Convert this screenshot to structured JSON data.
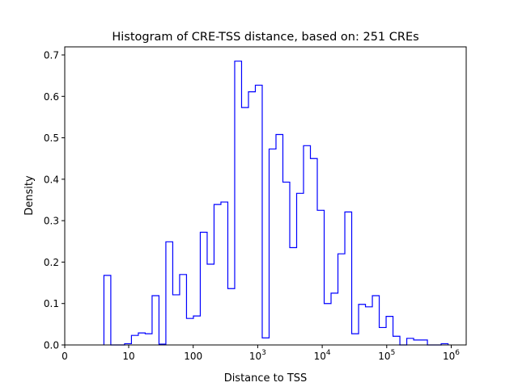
{
  "chart_data": {
    "type": "histogram-step",
    "title": "Histogram of CRE-TSS distance, based on: 251 CREs",
    "xlabel": "Distance to TSS",
    "ylabel": "Density",
    "xscale": "symlog",
    "xlim_log10": [
      -0.95,
      6.2
    ],
    "ylim": [
      0,
      0.72
    ],
    "x_ticks": [
      {
        "label": "0",
        "base": "",
        "exp": "",
        "log10": null
      },
      {
        "label": "10",
        "base": "",
        "exp": "",
        "log10": 1
      },
      {
        "label": "100",
        "base": "",
        "exp": "",
        "log10": 2
      },
      {
        "label": "",
        "base": "10",
        "exp": "3",
        "log10": 3
      },
      {
        "label": "",
        "base": "10",
        "exp": "4",
        "log10": 4
      },
      {
        "label": "",
        "base": "10",
        "exp": "5",
        "log10": 5
      },
      {
        "label": "",
        "base": "10",
        "exp": "6",
        "log10": 6
      }
    ],
    "y_ticks": [
      "0.0",
      "0.1",
      "0.2",
      "0.3",
      "0.4",
      "0.5",
      "0.6",
      "0.7"
    ],
    "y_tick_values": [
      0,
      0.1,
      0.2,
      0.3,
      0.4,
      0.5,
      0.6,
      0.7
    ],
    "bin_start_log10": 0.616,
    "bin_width_log10": 0.1067,
    "density": [
      0.168,
      0,
      0,
      0.003,
      0.023,
      0.029,
      0.027,
      0.119,
      0.002,
      0.249,
      0.121,
      0.17,
      0.064,
      0.07,
      0.272,
      0.195,
      0.339,
      0.345,
      0.136,
      0.685,
      0.573,
      0.611,
      0.627,
      0.017,
      0.473,
      0.508,
      0.393,
      0.235,
      0.366,
      0.481,
      0.45,
      0.325,
      0.1,
      0.125,
      0.22,
      0.321,
      0.027,
      0.098,
      0.092,
      0.119,
      0.042,
      0.069,
      0.021,
      0,
      0.016,
      0.012,
      0.012,
      0,
      0,
      0.003
    ],
    "line_color": "#0000ff",
    "grid": false
  }
}
